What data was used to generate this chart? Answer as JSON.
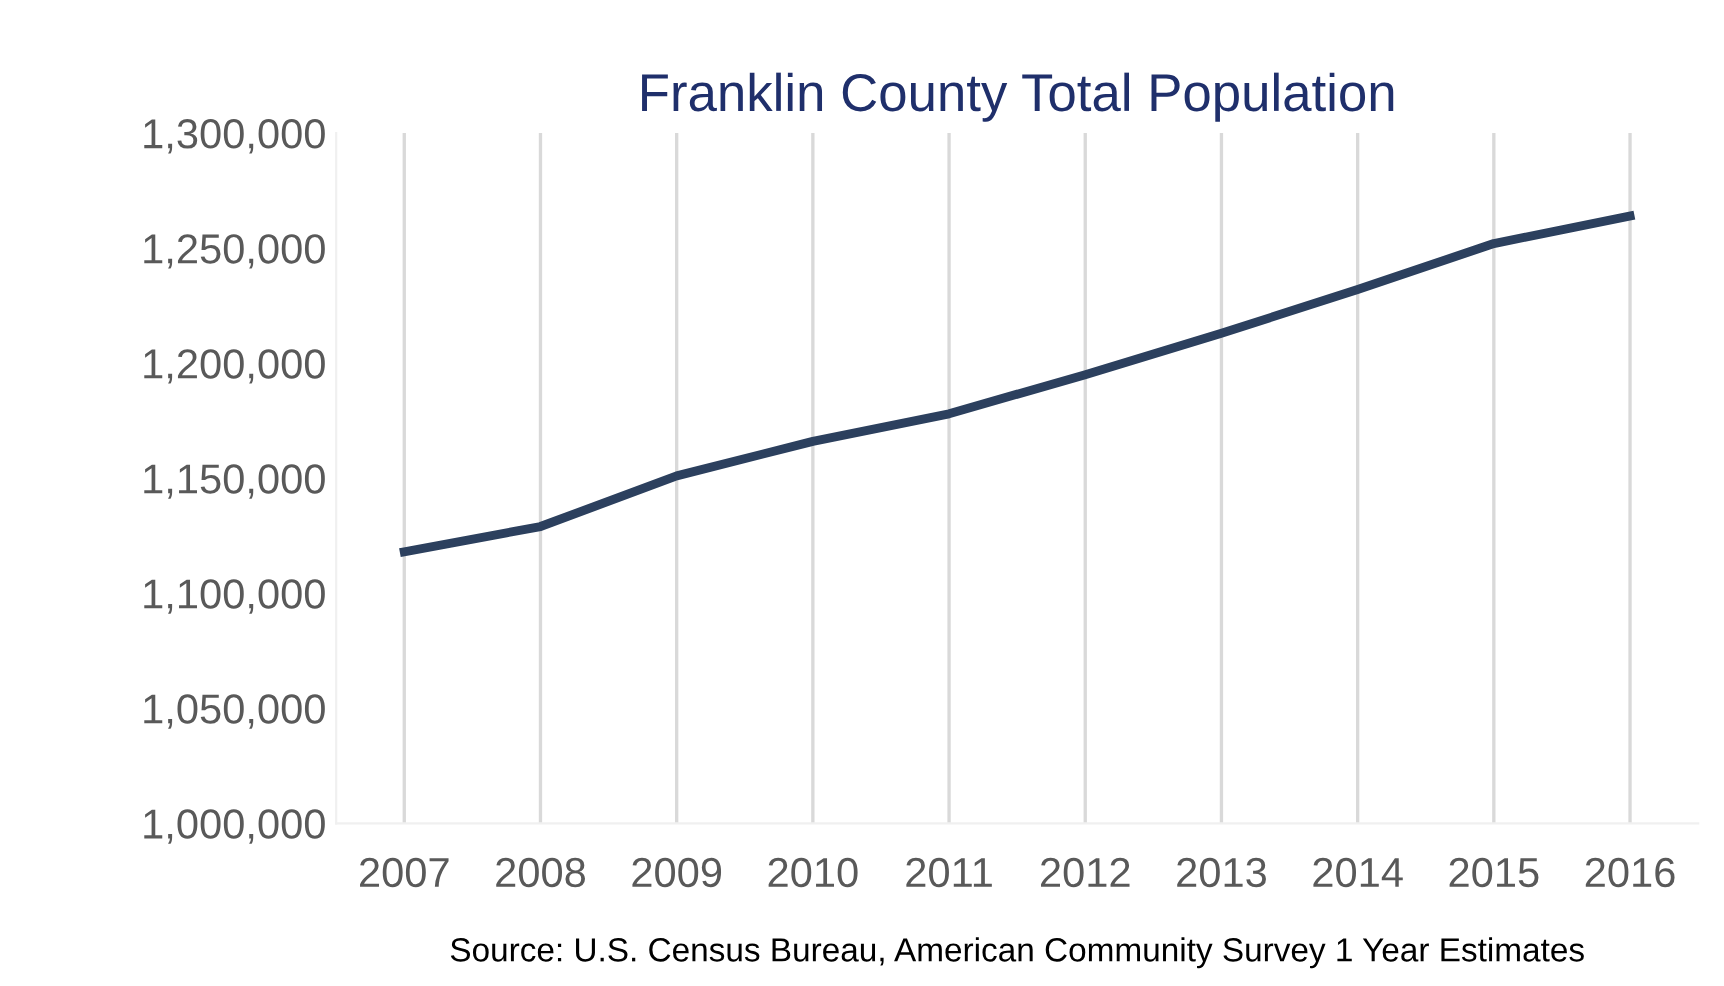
{
  "chart_data": {
    "type": "line",
    "title": "Franklin County Total Population",
    "categories": [
      "2007",
      "2008",
      "2009",
      "2010",
      "2011",
      "2012",
      "2013",
      "2014",
      "2015",
      "2016"
    ],
    "series": [
      {
        "color": "#2c405e",
        "values": [
          1118000,
          1129000,
          1151000,
          1166000,
          1178000,
          1195000,
          1213000,
          1232000,
          1252000,
          1264000
        ]
      }
    ],
    "ylim": [
      1000000,
      1300000
    ],
    "yticks": [
      {
        "value": 1000000,
        "label": "1,000,000"
      },
      {
        "value": 1050000,
        "label": "1,050,000"
      },
      {
        "value": 1100000,
        "label": "1,100,000"
      },
      {
        "value": 1150000,
        "label": "1,150,000"
      },
      {
        "value": 1200000,
        "label": "1,200,000"
      },
      {
        "value": 1250000,
        "label": "1,250,000"
      },
      {
        "value": 1300000,
        "label": "1,300,000"
      }
    ],
    "grid": "x",
    "marker": "none",
    "line_style": "solid",
    "legend": false,
    "annotations": [
      "Source: U.S. Census Bureau, American Community Survey 1 Year Estimates"
    ]
  }
}
